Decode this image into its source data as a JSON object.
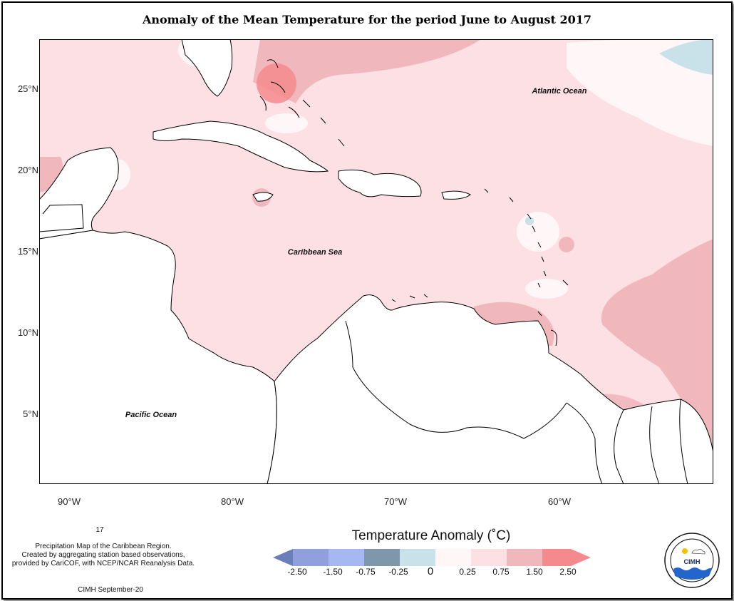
{
  "title": "Anomaly of the Mean Temperature for the period June to August 2017",
  "map": {
    "lat_ticks": [
      "25°N",
      "20°N",
      "15°N",
      "10°N",
      "5°N"
    ],
    "lon_ticks": [
      "90°W",
      "80°W",
      "70°W",
      "60°W"
    ],
    "labels": {
      "atlantic": "Atlantic Ocean",
      "caribbean": "Caribbean Sea",
      "pacific": "Pacific Ocean"
    },
    "colors": {
      "base_anomaly": "#fde0e4",
      "warm_anomaly": "#f0b8bd",
      "hot_anomaly": "#f48a8e",
      "neutral": "#fff6f7",
      "cool_anomaly": "#c9e1e9",
      "land": "#ffffff"
    }
  },
  "notes": {
    "page_number": "17",
    "description_line1": "Precipitation Map of the Caribbean Region.",
    "description_line2": "Created by aggregating station based observations,",
    "description_line3": "provided by CariCOF, with NCEP/NCAR Reanalysis Data.",
    "credit": "CIMH September-20"
  },
  "legend": {
    "title": "Temperature Anomaly (˚C)",
    "labels": [
      "-2.50",
      "-1.50",
      "-0.75",
      "-0.25",
      "0",
      "0.25",
      "0.75",
      "1.50",
      "2.50"
    ],
    "colors": [
      "#6a7fb9",
      "#8fa0dd",
      "#a6b8f2",
      "#7f97aa",
      "#c9e1e9",
      "#fff6f7",
      "#fde0e4",
      "#f0b8bd",
      "#f48a8e"
    ]
  },
  "logo": {
    "text": "CIMH",
    "ring_text": "Caribbean Institute for Meteorology and Hydrology"
  }
}
